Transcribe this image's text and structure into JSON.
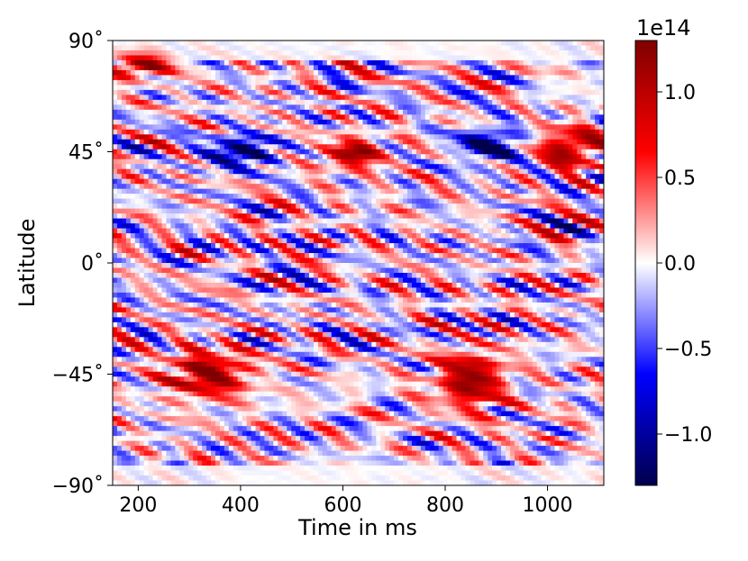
{
  "chart_data": {
    "type": "heatmap",
    "title": "",
    "xlabel": "Time in ms",
    "ylabel": "Latitude",
    "xlim": [
      150,
      1110
    ],
    "ylim": [
      -90,
      90
    ],
    "x_ticks": [
      {
        "value": 200,
        "label": "200"
      },
      {
        "value": 400,
        "label": "400"
      },
      {
        "value": 600,
        "label": "600"
      },
      {
        "value": 800,
        "label": "800"
      },
      {
        "value": 1000,
        "label": "1000"
      }
    ],
    "y_ticks": [
      {
        "value": 90,
        "label": "90˚"
      },
      {
        "value": 45,
        "label": "45˚"
      },
      {
        "value": 0,
        "label": "0˚"
      },
      {
        "value": -45,
        "label": "−45˚"
      },
      {
        "value": -90,
        "label": "−90˚"
      }
    ],
    "colorbar": {
      "colormap": "seismic",
      "range": [
        -1.3,
        1.3
      ],
      "multiplier_label": "1e14",
      "ticks": [
        {
          "value": 1.0,
          "label": "1.0"
        },
        {
          "value": 0.5,
          "label": "0.5"
        },
        {
          "value": 0.0,
          "label": "0.0"
        },
        {
          "value": -0.5,
          "label": "−0.5"
        },
        {
          "value": -1.0,
          "label": "−1.0"
        }
      ],
      "colors": {
        "low": "#00004c",
        "mid_low": "#0000ff",
        "zero": "#ffffff",
        "mid_high": "#ff0000",
        "high": "#7f0000"
      }
    },
    "features": [
      {
        "x": [
          250,
          420
        ],
        "lat": [
          -55,
          -35
        ],
        "sign": "positive"
      },
      {
        "x": [
          780,
          920
        ],
        "lat": [
          -60,
          -35
        ],
        "sign": "positive"
      },
      {
        "x": [
          330,
          470
        ],
        "lat": [
          38,
          52
        ],
        "sign": "negative"
      },
      {
        "x": [
          820,
          950
        ],
        "lat": [
          40,
          55
        ],
        "sign": "negative"
      },
      {
        "x": [
          560,
          680
        ],
        "lat": [
          38,
          50
        ],
        "sign": "positive"
      },
      {
        "x": [
          980,
          1110
        ],
        "lat": [
          38,
          55
        ],
        "sign": "positive"
      },
      {
        "x": [
          150,
          260
        ],
        "lat": [
          75,
          85
        ],
        "sign": "positive"
      }
    ]
  }
}
